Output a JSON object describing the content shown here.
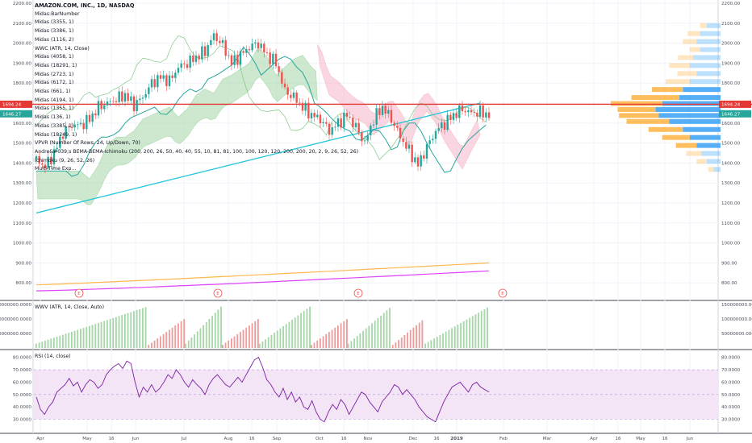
{
  "legend": {
    "symbol": "AMAZON.COM, INC., 1D, NASDAQ",
    "items": [
      "Midas:BarNumber",
      "Midas (3355, 1)",
      "Midas (3386, 1)",
      "Midas (1116, 2)",
      "WWC (ATR, 14, Close)",
      "Midas (4058, 1)",
      "Midas (18291, 1)",
      "Midas (2723, 1)",
      "Midas (6172, 1)",
      "Midas (661, 1)",
      "Midas (4194, 1)",
      "Midas (1355, 1)",
      "Midas (136, 1)",
      "Midas (3385, 1)",
      "Midas (18249, 1)",
      "VPVR (Number Of Rows, 24, Up/Down, 70)",
      "Andre&#039;s BEMA-BEMA-Ichimoku (200, 200, 26, 50, 40, 40, 55, 10, 81, 81, 100, 100, 120, 120, 200, 200, 20, 2, 9, 26, 52, 26)",
      "Ichimoku (9, 26, 52, 26)",
      "Multi-Time Exp..."
    ]
  },
  "pane_titles": {
    "volume": "WWV (ATR, 14, Close, Auto)",
    "rsi": "RSI (14, close)"
  },
  "price_tags": {
    "red": "1694.24",
    "teal": "1646.27"
  },
  "earnings_marker": "E",
  "colors": {
    "up": "#26a69a",
    "down": "#ef5350",
    "bema200": "#26c6da",
    "ema_orange": "#ffb74d",
    "ema_magenta": "#e040fb",
    "cloud_green": "#a5d6a7",
    "cloud_red": "#f8bbd0",
    "rsi": "#7b1fa2",
    "rsi_band": "#f3e5f5",
    "vp_up": "#ffb74d",
    "vp_down": "#42a5f5",
    "hline": "#e53935"
  },
  "chart_data": [
    {
      "type": "candlestick",
      "title": "AMAZON.COM, INC., 1D, NASDAQ",
      "ylim": [
        700,
        2200
      ],
      "y_ticks": [
        "2200.00",
        "2100.00",
        "2000.00",
        "1900.00",
        "1800.00",
        "1700.00",
        "1600.00",
        "1500.00",
        "1400.00",
        "1300.00",
        "1200.00",
        "1100.00",
        "1000.00",
        "900.00",
        "800.00"
      ],
      "x_ticks": [
        "Apr",
        "May",
        "16",
        "Jun",
        "Jul",
        "Aug",
        "16",
        "Sep",
        "Oct",
        "16",
        "Nov",
        "Dec",
        "16",
        "2019",
        "Feb",
        "Mar",
        "Apr",
        "16",
        "May",
        "16",
        "Jun"
      ],
      "x_tick_positions_note": "months",
      "key_levels": {
        "red_line": 1694.24,
        "teal_level": 1646.27
      },
      "close_path": [
        [
          0,
          1420
        ],
        [
          6,
          1380
        ],
        [
          12,
          1450
        ],
        [
          18,
          1550
        ],
        [
          24,
          1590
        ],
        [
          30,
          1590
        ],
        [
          36,
          1620
        ],
        [
          42,
          1680
        ],
        [
          48,
          1700
        ],
        [
          54,
          1720
        ],
        [
          60,
          1740
        ],
        [
          66,
          1690
        ],
        [
          72,
          1730
        ],
        [
          78,
          1800
        ],
        [
          84,
          1830
        ],
        [
          90,
          1810
        ],
        [
          96,
          1880
        ],
        [
          102,
          1900
        ],
        [
          108,
          1930
        ],
        [
          114,
          1960
        ],
        [
          120,
          2040
        ],
        [
          126,
          1990
        ],
        [
          132,
          1900
        ],
        [
          138,
          1940
        ],
        [
          144,
          1980
        ],
        [
          150,
          2000
        ],
        [
          156,
          1940
        ],
        [
          162,
          1900
        ],
        [
          168,
          1760
        ],
        [
          174,
          1730
        ],
        [
          180,
          1680
        ],
        [
          186,
          1640
        ],
        [
          192,
          1620
        ],
        [
          198,
          1560
        ],
        [
          204,
          1600
        ],
        [
          210,
          1640
        ],
        [
          216,
          1580
        ],
        [
          222,
          1500
        ],
        [
          228,
          1620
        ],
        [
          234,
          1680
        ],
        [
          240,
          1620
        ],
        [
          246,
          1530
        ],
        [
          252,
          1460
        ],
        [
          258,
          1390
        ],
        [
          264,
          1480
        ],
        [
          270,
          1560
        ],
        [
          276,
          1600
        ],
        [
          282,
          1640
        ],
        [
          288,
          1670
        ],
        [
          294,
          1650
        ],
        [
          300,
          1655
        ],
        [
          306,
          1640
        ]
      ],
      "bema200": {
        "name": "BEMA 200",
        "start": 1150,
        "end": 1700
      },
      "ema_orange": {
        "start": 790,
        "end": 900
      },
      "ema_magenta": {
        "start": 760,
        "end": 860
      },
      "earnings_markers": 4
    },
    {
      "type": "bar",
      "title": "WWV (ATR, 14, Close, Auto)",
      "ylim": [
        0,
        150000000
      ],
      "y_ticks": [
        "150000000.0000",
        "100000000.0000",
        "50000000.0000"
      ]
    },
    {
      "type": "line",
      "title": "RSI (14, close)",
      "ylim": [
        20,
        85
      ],
      "y_ticks": [
        "80.0000",
        "70.0000",
        "60.0000",
        "50.0000",
        "40.0000",
        "30.0000"
      ],
      "band": [
        30,
        70
      ],
      "values": [
        48,
        38,
        34,
        40,
        44,
        52,
        55,
        58,
        63,
        57,
        60,
        52,
        58,
        62,
        60,
        55,
        58,
        66,
        70,
        73,
        75,
        71,
        77,
        75,
        60,
        48,
        56,
        52,
        58,
        52,
        55,
        60,
        66,
        63,
        70,
        66,
        60,
        56,
        62,
        58,
        55,
        50,
        58,
        63,
        66,
        62,
        58,
        56,
        60,
        64,
        60,
        66,
        72,
        78,
        80,
        72,
        62,
        58,
        52,
        48,
        55,
        46,
        52,
        44,
        48,
        40,
        38,
        45,
        36,
        30,
        28,
        36,
        42,
        38,
        46,
        42,
        34,
        40,
        46,
        52,
        50,
        44,
        40,
        36,
        44,
        48,
        52,
        58,
        56,
        50,
        54,
        50,
        46,
        40,
        36,
        32,
        30,
        28,
        36,
        44,
        50,
        56,
        58,
        60,
        56,
        52,
        58,
        60,
        56,
        54,
        52
      ]
    }
  ]
}
